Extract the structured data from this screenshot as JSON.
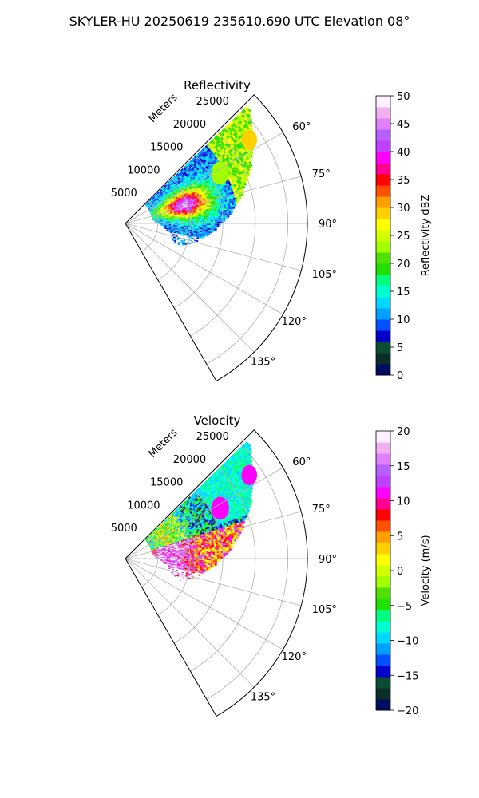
{
  "suptitle": "SKYLER-HU  20250619  235610.690 UTC Elevation 08°",
  "chart_data": [
    {
      "type": "heatmap",
      "projection": "polar-sector",
      "title": "Reflectivity",
      "radial_label": "Meters",
      "r_ticks": [
        "5000",
        "10000",
        "15000",
        "20000",
        "25000"
      ],
      "r_values": [
        5000,
        10000,
        15000,
        20000,
        25000
      ],
      "theta_ticks": [
        "60°",
        "75°",
        "90°",
        "105°",
        "120°",
        "135°"
      ],
      "theta_range_deg": [
        45,
        150
      ],
      "grid": true,
      "colorbar": {
        "label": "Reflectivity dBZ",
        "ticks": [
          "0",
          "5",
          "10",
          "15",
          "20",
          "25",
          "30",
          "35",
          "40",
          "45",
          "50"
        ],
        "range": [
          0,
          50
        ],
        "colors": [
          "#000d60",
          "#0a2d2a",
          "#0b4d33",
          "#0000c8",
          "#0050ff",
          "#00a0ff",
          "#00d8ff",
          "#00ffd0",
          "#00ff80",
          "#20e000",
          "#50e000",
          "#a0ff00",
          "#d0ff00",
          "#ffff00",
          "#ffd000",
          "#ffa000",
          "#ff5000",
          "#ff0000",
          "#ff0090",
          "#ff00ff",
          "#c040ff",
          "#b860ff",
          "#e080ff",
          "#f0b0f0",
          "#fff0ff"
        ]
      }
    },
    {
      "type": "heatmap",
      "projection": "polar-sector",
      "title": "Velocity",
      "radial_label": "Meters",
      "r_ticks": [
        "5000",
        "10000",
        "15000",
        "20000",
        "25000"
      ],
      "r_values": [
        5000,
        10000,
        15000,
        20000,
        25000
      ],
      "theta_ticks": [
        "60°",
        "75°",
        "90°",
        "105°",
        "120°",
        "135°"
      ],
      "theta_range_deg": [
        45,
        150
      ],
      "grid": true,
      "colorbar": {
        "label": "Velocity (m/s)",
        "ticks": [
          "20",
          "15",
          "10",
          "5",
          "0",
          "−5",
          "−10",
          "−15",
          "−20"
        ],
        "range": [
          -20,
          20
        ],
        "colors": [
          "#000d60",
          "#0a2d2a",
          "#0b4d33",
          "#0000c8",
          "#0050ff",
          "#00a0ff",
          "#00d8ff",
          "#00ffd0",
          "#00ff80",
          "#20e000",
          "#50e000",
          "#a0ff00",
          "#d0ff00",
          "#ffff00",
          "#ffd000",
          "#ffa000",
          "#ff5000",
          "#ff0000",
          "#ff0090",
          "#ff00ff",
          "#c040ff",
          "#b860ff",
          "#e080ff",
          "#f0b0f0",
          "#fff0ff"
        ]
      }
    }
  ]
}
